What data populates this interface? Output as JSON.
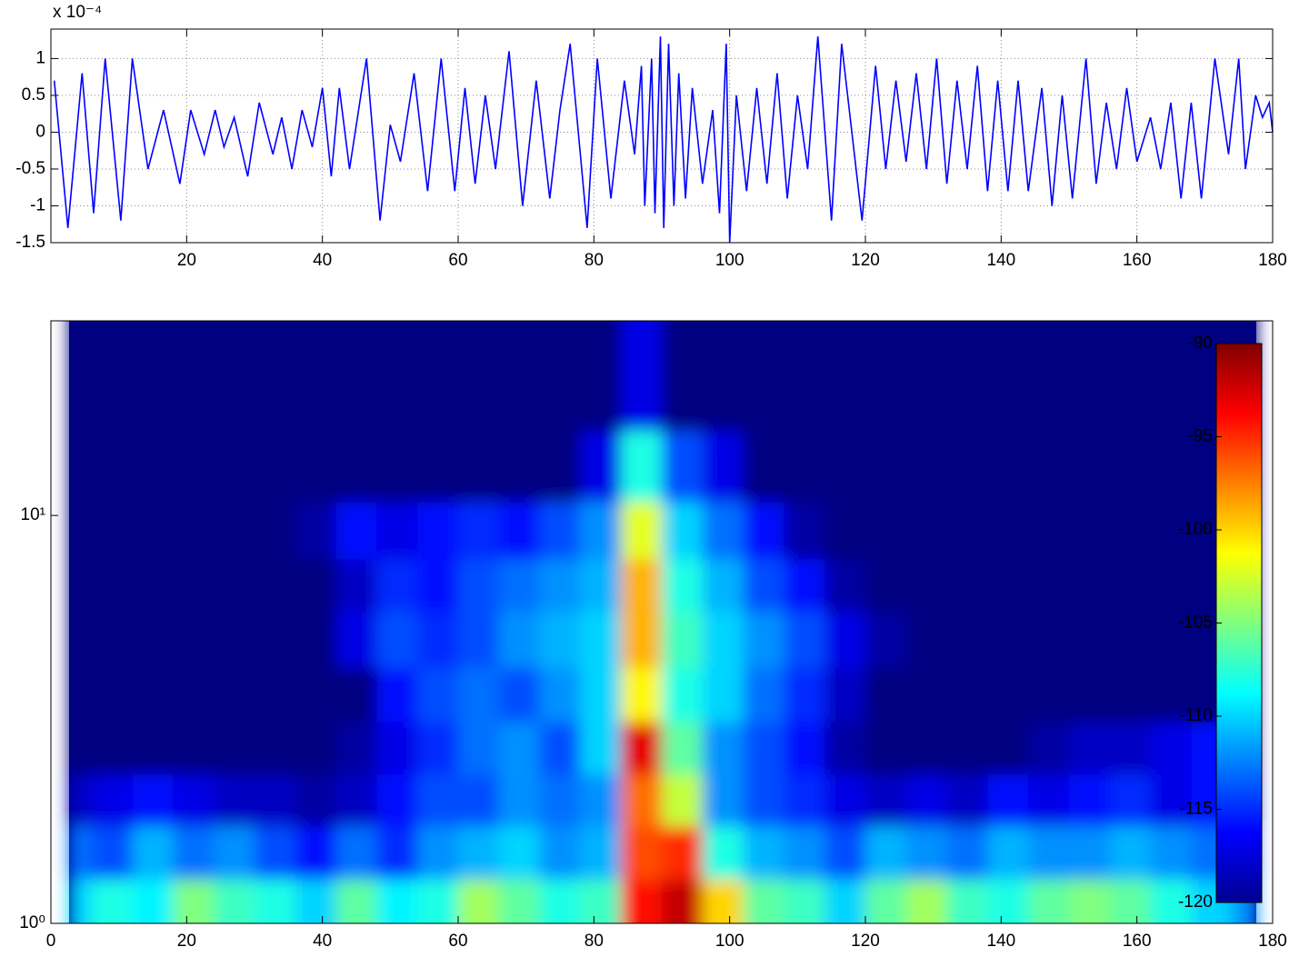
{
  "chart_data": [
    {
      "type": "line",
      "multiplier": "x 10⁻⁴",
      "x": [
        0.5,
        2.5,
        4.6,
        6.3,
        8,
        10.3,
        12,
        14.3,
        16.6,
        19,
        20.6,
        22.6,
        24.2,
        25.5,
        27,
        29,
        30.7,
        32.7,
        34,
        35.5,
        37,
        38.5,
        40,
        41.3,
        42.5,
        44,
        46.5,
        48.5,
        50,
        51.5,
        53.5,
        55.5,
        57.5,
        59.5,
        61,
        62.5,
        64,
        65.5,
        67.5,
        69.5,
        71.5,
        73.5,
        75,
        76.5,
        79,
        80.5,
        82.5,
        84.5,
        86,
        87,
        87.5,
        88.5,
        89,
        89.8,
        90.3,
        91,
        91.8,
        92.5,
        93.5,
        94.5,
        96,
        97.5,
        98.5,
        99.5,
        100,
        101,
        102.5,
        104,
        105.5,
        107,
        108.5,
        110,
        111.5,
        113,
        115,
        116.5,
        119.5,
        121.5,
        123,
        124.5,
        126,
        127.5,
        129,
        130.5,
        132,
        133.5,
        135,
        136.5,
        138,
        139.5,
        141,
        142.5,
        144,
        146,
        147.5,
        149,
        150.5,
        152.5,
        154,
        155.5,
        157,
        158.5,
        160,
        162,
        163.5,
        165,
        166.5,
        168,
        169.5,
        171.5,
        173.5,
        175,
        176,
        177.5,
        178.5,
        179.5,
        180
      ],
      "series": [
        {
          "color": "#0000ff",
          "values": [
            0.7,
            -1.3,
            0.8,
            -1.1,
            1.0,
            -1.2,
            1.0,
            -0.5,
            0.3,
            -0.7,
            0.3,
            -0.3,
            0.3,
            -0.2,
            0.2,
            -0.6,
            0.4,
            -0.3,
            0.2,
            -0.5,
            0.3,
            -0.2,
            0.6,
            -0.6,
            0.6,
            -0.5,
            1.0,
            -1.2,
            0.1,
            -0.4,
            0.8,
            -0.8,
            1.0,
            -0.8,
            0.6,
            -0.7,
            0.5,
            -0.5,
            1.1,
            -1.0,
            0.7,
            -0.9,
            0.3,
            1.2,
            -1.3,
            1.0,
            -0.9,
            0.7,
            -0.3,
            0.9,
            -1.0,
            1.0,
            -1.1,
            1.3,
            -1.3,
            1.2,
            -1.0,
            0.8,
            -0.9,
            0.6,
            -0.7,
            0.3,
            -1.1,
            1.2,
            -1.5,
            0.5,
            -0.8,
            0.6,
            -0.7,
            0.8,
            -0.9,
            0.5,
            -0.5,
            1.3,
            -1.2,
            1.2,
            -1.2,
            0.9,
            -0.5,
            0.7,
            -0.4,
            0.8,
            -0.5,
            1.0,
            -0.7,
            0.7,
            -0.5,
            0.9,
            -0.8,
            0.7,
            -0.8,
            0.7,
            -0.8,
            0.6,
            -1.0,
            0.5,
            -0.9,
            1.0,
            -0.7,
            0.4,
            -0.5,
            0.6,
            -0.4,
            0.2,
            -0.5,
            0.4,
            -0.9,
            0.4,
            -0.9,
            1.0,
            -0.3,
            1.0,
            -0.5,
            0.5,
            0.2,
            0.4,
            0
          ]
        }
      ],
      "xlim": [
        0,
        180
      ],
      "xticks": [
        20,
        40,
        60,
        80,
        100,
        120,
        140,
        160,
        180
      ],
      "ylim": [
        -1.5,
        1.4
      ],
      "yticks": [
        -1.5,
        -1,
        -0.5,
        0,
        0.5,
        1
      ],
      "grid": true
    },
    {
      "type": "heatmap",
      "x": [
        3,
        9,
        15,
        21,
        27,
        33,
        39,
        45,
        51,
        57,
        63,
        69,
        75,
        81,
        87,
        93,
        99,
        105,
        111,
        117,
        123,
        129,
        135,
        141,
        147,
        153,
        159,
        165,
        171,
        177
      ],
      "y": [
        1.1,
        1.5,
        2,
        2.7,
        3.6,
        5,
        6.8,
        9,
        13,
        20
      ],
      "z": [
        [
          -110,
          -108,
          -109,
          -105,
          -107,
          -108,
          -110,
          -106,
          -109,
          -108,
          -104,
          -106,
          -108,
          -107,
          -94,
          -92,
          -100,
          -106,
          -107,
          -110,
          -106,
          -104,
          -107,
          -108,
          -106,
          -105,
          -106,
          -108,
          -110,
          -112
        ],
        [
          -113,
          -114,
          -111,
          -113,
          -112,
          -114,
          -116,
          -113,
          -115,
          -112,
          -111,
          -110,
          -112,
          -111,
          -96,
          -95,
          -108,
          -111,
          -112,
          -114,
          -111,
          -112,
          -113,
          -111,
          -112,
          -112,
          -111,
          -112,
          -113,
          -114
        ],
        [
          -118,
          -117,
          -116,
          -117,
          -118,
          -118,
          -119,
          -118,
          -116,
          -114,
          -114,
          -112,
          -113,
          -112,
          -97,
          -103,
          -112,
          -114,
          -115,
          -117,
          -118,
          -117,
          -118,
          -116,
          -117,
          -116,
          -115,
          -117,
          -116,
          -118
        ],
        [
          -120,
          -120,
          -120,
          -120,
          -120,
          -120,
          -120,
          -119,
          -117,
          -115,
          -113,
          -112,
          -114,
          -110,
          -93,
          -106,
          -112,
          -114,
          -116,
          -119,
          -120,
          -120,
          -120,
          -120,
          -119,
          -118,
          -118,
          -117,
          -116,
          -119
        ],
        [
          -120,
          -120,
          -120,
          -120,
          -120,
          -120,
          -120,
          -120,
          -116,
          -114,
          -113,
          -114,
          -112,
          -110,
          -101,
          -108,
          -110,
          -113,
          -115,
          -118,
          -120,
          -120,
          -120,
          -120,
          -120,
          -120,
          -120,
          -120,
          -120,
          -120
        ],
        [
          -120,
          -120,
          -120,
          -120,
          -120,
          -120,
          -120,
          -117,
          -114,
          -115,
          -114,
          -112,
          -111,
          -110,
          -99,
          -107,
          -110,
          -112,
          -114,
          -117,
          -119,
          -120,
          -120,
          -120,
          -120,
          -120,
          -120,
          -120,
          -120,
          -120
        ],
        [
          -120,
          -120,
          -120,
          -120,
          -120,
          -120,
          -120,
          -118,
          -115,
          -116,
          -114,
          -113,
          -112,
          -111,
          -99,
          -108,
          -111,
          -114,
          -116,
          -119,
          -120,
          -120,
          -120,
          -120,
          -120,
          -120,
          -120,
          -120,
          -120,
          -120
        ],
        [
          -120,
          -120,
          -120,
          -120,
          -120,
          -120,
          -119,
          -116,
          -117,
          -116,
          -115,
          -116,
          -114,
          -112,
          -102,
          -110,
          -113,
          -116,
          -119,
          -120,
          -120,
          -120,
          -120,
          -120,
          -120,
          -120,
          -120,
          -120,
          -120,
          -120
        ],
        [
          -120,
          -120,
          -120,
          -120,
          -120,
          -120,
          -120,
          -120,
          -120,
          -120,
          -120,
          -120,
          -120,
          -117,
          -108,
          -114,
          -117,
          -120,
          -120,
          -120,
          -120,
          -120,
          -120,
          -120,
          -120,
          -120,
          -120,
          -120,
          -120,
          -120
        ],
        [
          -120,
          -120,
          -120,
          -120,
          -120,
          -120,
          -120,
          -120,
          -120,
          -120,
          -120,
          -120,
          -120,
          -120,
          -117,
          -120,
          -120,
          -120,
          -120,
          -120,
          -120,
          -120,
          -120,
          -120,
          -120,
          -120,
          -120,
          -120,
          -120,
          -120
        ]
      ],
      "colormap": "jet",
      "xlim": [
        0,
        180
      ],
      "xticks": [
        0,
        20,
        40,
        60,
        80,
        100,
        120,
        140,
        160,
        180
      ],
      "ylim": [
        1,
        30
      ],
      "yscale": "log",
      "yticks": [
        {
          "value": 1,
          "label": "10⁰"
        },
        {
          "value": 10,
          "label": "10¹"
        }
      ],
      "clim": [
        -120,
        -90
      ],
      "cticks": [
        -120,
        -115,
        -110,
        -105,
        -100,
        -95,
        -90
      ]
    }
  ]
}
